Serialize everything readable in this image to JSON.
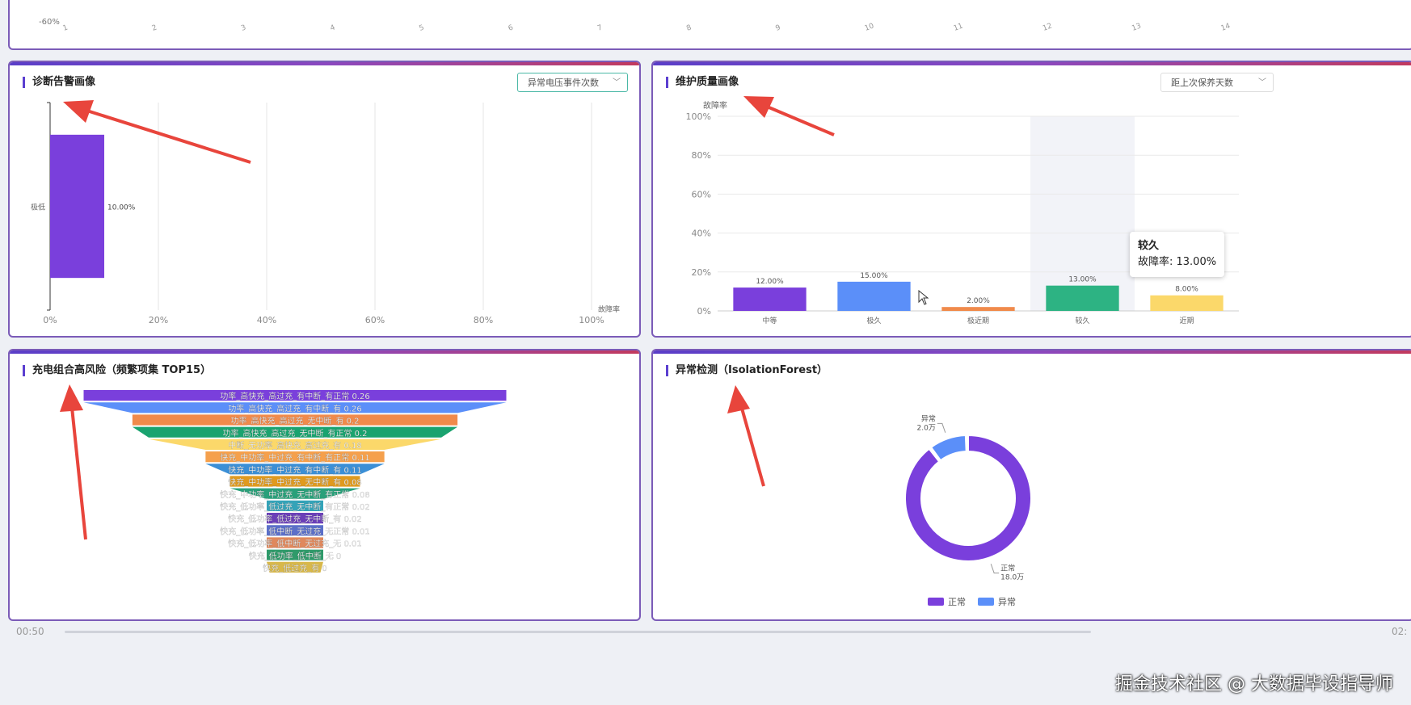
{
  "top_chart": {
    "y_tick": "-60%",
    "x_ticks": [
      "1",
      "2",
      "3",
      "4",
      "5",
      "6",
      "7",
      "8",
      "9",
      "10",
      "11",
      "12",
      "13",
      "14"
    ]
  },
  "diag_panel": {
    "title": "诊断告警画像",
    "dropdown": "异常电压事件次数",
    "chart_data": {
      "type": "bar",
      "orientation": "horizontal",
      "categories": [
        "极低"
      ],
      "values": [
        10.0
      ],
      "value_labels": [
        "10.00%"
      ],
      "xlabel": "故障率",
      "xlim": [
        0,
        100
      ],
      "x_ticks": [
        "0%",
        "20%",
        "40%",
        "60%",
        "80%",
        "100%"
      ],
      "color": "#7a3fdc"
    }
  },
  "maint_panel": {
    "title": "维护质量画像",
    "dropdown": "距上次保养天数",
    "chart_data": {
      "type": "bar",
      "categories": [
        "中等",
        "极久",
        "极近期",
        "较久",
        "近期"
      ],
      "values": [
        12.0,
        15.0,
        2.0,
        13.0,
        8.0
      ],
      "value_labels": [
        "12.00%",
        "15.00%",
        "2.00%",
        "13.00%",
        "8.00%"
      ],
      "colors": [
        "#7a3fdc",
        "#5b8ff9",
        "#f08a4b",
        "#2db383",
        "#fbd86a"
      ],
      "ylabel": "故障率",
      "ylim": [
        0,
        100
      ],
      "y_ticks": [
        "0%",
        "20%",
        "40%",
        "60%",
        "80%",
        "100%"
      ],
      "highlight_index": 3
    },
    "tooltip": {
      "title": "较久",
      "line": "故障率: 13.00%"
    }
  },
  "charge_panel": {
    "title": "充电组合高风险（频繁项集 TOP15）",
    "chart_data": {
      "type": "funnel",
      "items": [
        {
          "label": "功率_高快充_高过充_有中断_有正常 0.26",
          "value": 0.26,
          "color": "#7a3fdc"
        },
        {
          "label": "功率_高快充_高过充_有中断_有 0.26",
          "value": 0.26,
          "color": "#5b8ff9"
        },
        {
          "label": "功率_高快充_高过充_无中断_有 0.2",
          "value": 0.2,
          "color": "#f08a4b"
        },
        {
          "label": "功率_高快充_高过充_无中断_有正常 0.2",
          "value": 0.2,
          "color": "#1aa36f"
        },
        {
          "label": "中断_无功率_高快充_高过充_有 0.18",
          "value": 0.18,
          "color": "#fbd86a"
        },
        {
          "label": "快充_中功率_中过充_有中断_有正常 0.11",
          "value": 0.11,
          "color": "#f5a04c"
        },
        {
          "label": "快充_中功率_中过充_有中断_有 0.11",
          "value": 0.11,
          "color": "#3b8fd6"
        },
        {
          "label": "快充_中功率_中过充_无中断_有 0.08",
          "value": 0.08,
          "color": "#e09a1e"
        },
        {
          "label": "快充_中功率_中过充_无中断_有正常 0.08",
          "value": 0.08,
          "color": "#2aa07a"
        },
        {
          "label": "快充_低功率_低过充_无中断_有正常 0.02",
          "value": 0.02,
          "color": "#34a3b8"
        },
        {
          "label": "快充_低功率_低过充_无中断_有 0.02",
          "value": 0.02,
          "color": "#6b3fb8"
        },
        {
          "label": "快充_低功率_低中断_无过充_无正常 0.01",
          "value": 0.01,
          "color": "#5b6fc9"
        },
        {
          "label": "快充_低功率_低中断_无过充_无 0.01",
          "value": 0.01,
          "color": "#e0885c"
        },
        {
          "label": "快充_低功率_低中断_无 0",
          "value": 0,
          "color": "#2f9a6a"
        },
        {
          "label": "快充_低过充_有 0",
          "value": 0,
          "color": "#d8b84a"
        }
      ]
    }
  },
  "anomaly_panel": {
    "title": "异常检测（IsolationForest）",
    "chart_data": {
      "type": "pie",
      "donut": true,
      "slices": [
        {
          "name": "正常",
          "value": 18.0,
          "label": "18.0万",
          "color": "#7a3fdc"
        },
        {
          "name": "异常",
          "value": 2.0,
          "label": "2.0万",
          "color": "#5b8ff9"
        }
      ],
      "legend": [
        "正常",
        "异常"
      ],
      "legend_position": "bottom-right"
    }
  },
  "bottom": {
    "time_left": "00:50",
    "time_right": "02:"
  },
  "watermark": "掘金技术社区 @ 大数据毕设指导师"
}
